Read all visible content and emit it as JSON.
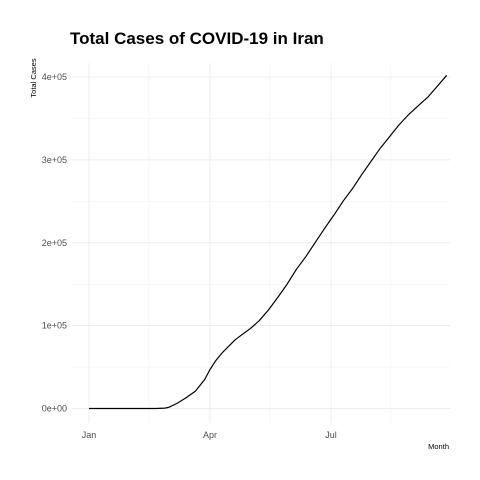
{
  "chart_data": {
    "type": "line",
    "title": "Total Cases of COVID-19 in Iran",
    "xlabel": "Month",
    "ylabel": "Total Cases",
    "x_ticks": [
      "Jan",
      "Apr",
      "Jul"
    ],
    "y_ticks": [
      "0e+00",
      "1e+05",
      "2e+05",
      "3e+05",
      "4e+05"
    ],
    "grid": true,
    "series": [
      {
        "x": [
          "2020-01-01",
          "2020-02-01",
          "2020-02-20",
          "2020-02-27",
          "2020-03-01",
          "2020-03-07",
          "2020-03-14",
          "2020-03-21",
          "2020-03-28",
          "2020-04-01",
          "2020-04-05",
          "2020-04-10",
          "2020-04-15",
          "2020-04-20",
          "2020-04-25",
          "2020-05-01",
          "2020-05-08",
          "2020-05-15",
          "2020-05-22",
          "2020-05-29",
          "2020-06-05",
          "2020-06-12",
          "2020-06-19",
          "2020-06-26",
          "2020-07-03",
          "2020-07-10",
          "2020-07-17",
          "2020-07-24",
          "2020-07-31",
          "2020-08-07",
          "2020-08-14",
          "2020-08-21",
          "2020-08-28",
          "2020-09-05",
          "2020-09-12",
          "2020-09-19",
          "2020-09-26"
        ],
        "y": [
          0,
          0,
          0,
          500,
          1500,
          6000,
          13000,
          21000,
          35000,
          47000,
          57000,
          67000,
          75000,
          83000,
          89000,
          96000,
          106000,
          119000,
          134000,
          150000,
          168000,
          183000,
          200000,
          217000,
          233000,
          250000,
          265000,
          282000,
          298000,
          314000,
          328000,
          342000,
          354000,
          366000,
          376000,
          389000,
          402000
        ]
      }
    ]
  }
}
